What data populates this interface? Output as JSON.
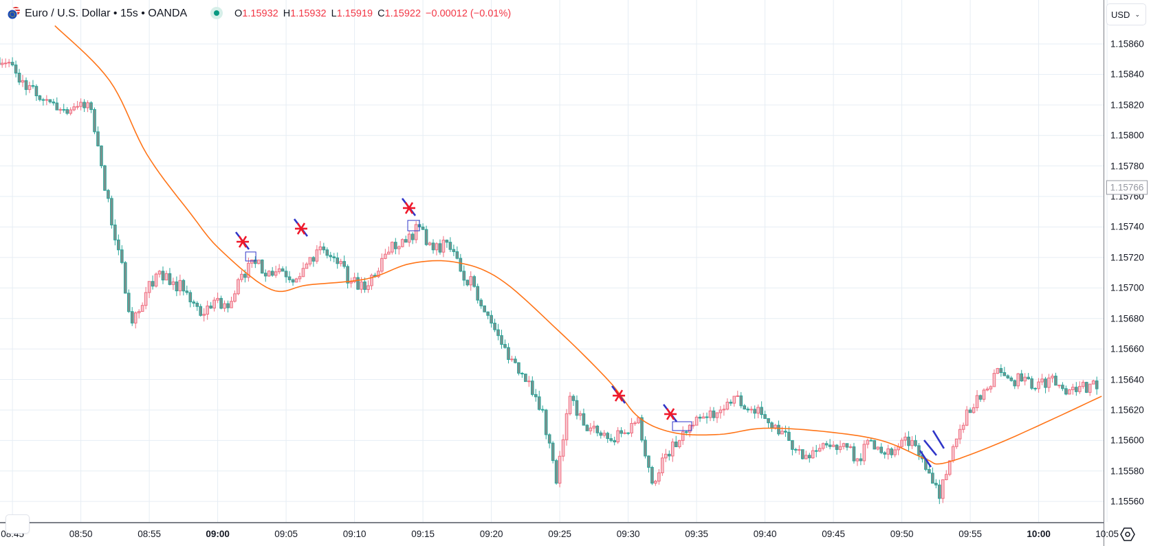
{
  "header": {
    "title": "Euro / U.S. Dollar • 15s • OANDA",
    "o_label": "O",
    "o_value": "1.15932",
    "h_label": "H",
    "h_value": "1.15932",
    "l_label": "L",
    "l_value": "1.15919",
    "c_label": "C",
    "c_value": "1.15922",
    "change": "−0.00012 (−0.01%)",
    "live_icon": "market-open-dot",
    "symbol_icon": "eur-usd-flags"
  },
  "price_axis": {
    "currency": "USD",
    "current_price": "1.15766",
    "labels": [
      "1.15860",
      "1.15840",
      "1.15820",
      "1.15800",
      "1.15780",
      "1.15760",
      "1.15740",
      "1.15720",
      "1.15700",
      "1.15680",
      "1.15660",
      "1.15640",
      "1.15620",
      "1.15600",
      "1.15580",
      "1.15560"
    ]
  },
  "time_axis": {
    "labels": [
      {
        "t": "08:45",
        "m": 0,
        "bold": false
      },
      {
        "t": "08:50",
        "m": 5,
        "bold": false
      },
      {
        "t": "08:55",
        "m": 10,
        "bold": false
      },
      {
        "t": "09:00",
        "m": 15,
        "bold": true
      },
      {
        "t": "09:05",
        "m": 20,
        "bold": false
      },
      {
        "t": "09:10",
        "m": 25,
        "bold": false
      },
      {
        "t": "09:15",
        "m": 30,
        "bold": false
      },
      {
        "t": "09:20",
        "m": 35,
        "bold": false
      },
      {
        "t": "09:25",
        "m": 40,
        "bold": false
      },
      {
        "t": "09:30",
        "m": 45,
        "bold": false
      },
      {
        "t": "09:35",
        "m": 50,
        "bold": false
      },
      {
        "t": "09:40",
        "m": 55,
        "bold": false
      },
      {
        "t": "09:45",
        "m": 60,
        "bold": false
      },
      {
        "t": "09:50",
        "m": 65,
        "bold": false
      },
      {
        "t": "09:55",
        "m": 70,
        "bold": false
      },
      {
        "t": "10:00",
        "m": 75,
        "bold": true
      },
      {
        "t": "10:05",
        "m": 80,
        "bold": false
      }
    ]
  },
  "colors": {
    "up_fill": "#f7c6cf",
    "up_border": "#ef6b7d",
    "down_fill": "#7f8f8c",
    "down_border": "#26a69a",
    "ma": "#ff7417",
    "grid": "#e6edf4",
    "marker_red": "#f0182a",
    "marker_blue": "#2f35c8"
  },
  "chart_data": {
    "type": "candlestick",
    "title": "Euro / U.S. Dollar • 15s • OANDA",
    "interval": "15s",
    "x_unit": "minutes since 08:45",
    "ylim": [
      1.1554,
      1.1588
    ],
    "xlim": [
      -1,
      80.5
    ],
    "grid": true,
    "minute_closes_start": -1,
    "minute_closes": [
      1.15848,
      1.15836,
      1.15826,
      1.15822,
      1.15817,
      1.15819,
      1.15817,
      1.15764,
      1.15725,
      1.15677,
      1.15697,
      1.15711,
      1.15704,
      1.15697,
      1.15682,
      1.15692,
      1.15687,
      1.15709,
      1.15716,
      1.15711,
      1.15711,
      1.15706,
      1.1572,
      1.15725,
      1.15716,
      1.15704,
      1.15699,
      1.15711,
      1.1573,
      1.1573,
      1.1574,
      1.15725,
      1.1573,
      1.15711,
      1.15701,
      1.15682,
      1.15663,
      1.15651,
      1.15639,
      1.1562,
      1.15572,
      1.15629,
      1.1561,
      1.15605,
      1.156,
      1.15605,
      1.15615,
      1.15572,
      1.15591,
      1.156,
      1.1561,
      1.15615,
      1.1562,
      1.15629,
      1.1562,
      1.15617,
      1.1561,
      1.156,
      1.15588,
      1.15593,
      1.15596,
      1.15598,
      1.15588,
      1.156,
      1.15591,
      1.15596,
      1.156,
      1.15581,
      1.15562,
      1.15596,
      1.1562,
      1.15627,
      1.15644,
      1.15641,
      1.15639,
      1.15634,
      1.15641,
      1.15634,
      1.15632,
      1.15637,
      1.15639,
      1.1565
    ],
    "moving_average": [
      [
        3.1,
        1.15872
      ],
      [
        7.1,
        1.15836
      ],
      [
        9.8,
        1.15788
      ],
      [
        13,
        1.15749
      ],
      [
        15.2,
        1.15725
      ],
      [
        18.9,
        1.15699
      ],
      [
        21.6,
        1.15702
      ],
      [
        25.9,
        1.15706
      ],
      [
        29.1,
        1.15716
      ],
      [
        32.3,
        1.15717
      ],
      [
        35.6,
        1.15706
      ],
      [
        39.9,
        1.15672
      ],
      [
        43.6,
        1.15639
      ],
      [
        45.8,
        1.15615
      ],
      [
        48.4,
        1.15605
      ],
      [
        51.7,
        1.15604
      ],
      [
        54.9,
        1.15608
      ],
      [
        59.2,
        1.15606
      ],
      [
        63.5,
        1.156
      ],
      [
        66.7,
        1.15588
      ],
      [
        68,
        1.15585
      ],
      [
        71.5,
        1.15596
      ],
      [
        75.3,
        1.15611
      ],
      [
        79.6,
        1.15629
      ]
    ],
    "star_markers": [
      [
        16.83,
        1.157303
      ],
      [
        21.1,
        1.157389
      ],
      [
        28.99,
        1.157524
      ],
      [
        44.32,
        1.156294
      ],
      [
        48.09,
        1.156173
      ]
    ],
    "boxes": [
      [
        17.04,
        1.157236,
        17.79,
        1.157177
      ],
      [
        28.89,
        1.157443,
        29.74,
        1.157375
      ],
      [
        48.24,
        1.156123,
        49.64,
        1.156065
      ]
    ],
    "trend_lines": [
      [
        66.33,
        1.155934,
        67.13,
        1.155826
      ],
      [
        66.63,
        1.156002,
        67.53,
        1.155903
      ],
      [
        67.28,
        1.156065,
        68.08,
        1.155948
      ]
    ]
  }
}
